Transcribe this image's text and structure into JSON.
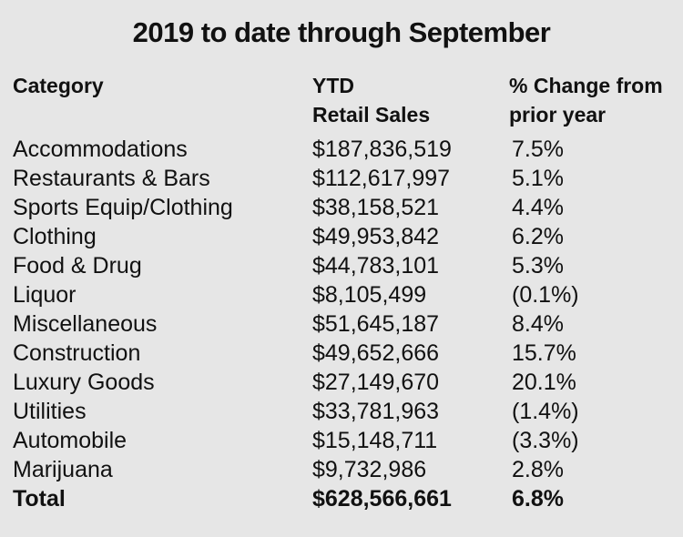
{
  "chart_data": {
    "type": "table",
    "title": "2019 to date through September",
    "columns": [
      {
        "lines": [
          "Category"
        ]
      },
      {
        "lines": [
          "YTD",
          "Retail Sales"
        ]
      },
      {
        "lines": [
          "% Change from",
          "prior year"
        ]
      }
    ],
    "rows": [
      {
        "category": "Accommodations",
        "sales": "$187,836,519",
        "change": "7.5%"
      },
      {
        "category": "Restaurants & Bars",
        "sales": "$112,617,997",
        "change": "5.1%"
      },
      {
        "category": "Sports Equip/Clothing",
        "sales": "$38,158,521",
        "change": "4.4%"
      },
      {
        "category": "Clothing",
        "sales": "$49,953,842",
        "change": "6.2%"
      },
      {
        "category": "Food & Drug",
        "sales": "$44,783,101",
        "change": "5.3%"
      },
      {
        "category": "Liquor",
        "sales": "$8,105,499",
        "change": "(0.1%)"
      },
      {
        "category": "Miscellaneous",
        "sales": "$51,645,187",
        "change": "8.4%"
      },
      {
        "category": "Construction",
        "sales": "$49,652,666",
        "change": "15.7%"
      },
      {
        "category": "Luxury Goods",
        "sales": "$27,149,670",
        "change": "20.1%"
      },
      {
        "category": "Utilities",
        "sales": "$33,781,963",
        "change": "(1.4%)"
      },
      {
        "category": "Automobile",
        "sales": "$15,148,711",
        "change": "(3.3%)"
      },
      {
        "category": "Marijuana",
        "sales": "$9,732,986",
        "change": "2.8%"
      }
    ],
    "total": {
      "category": "Total",
      "sales": "$628,566,661",
      "change": "6.8%"
    }
  }
}
